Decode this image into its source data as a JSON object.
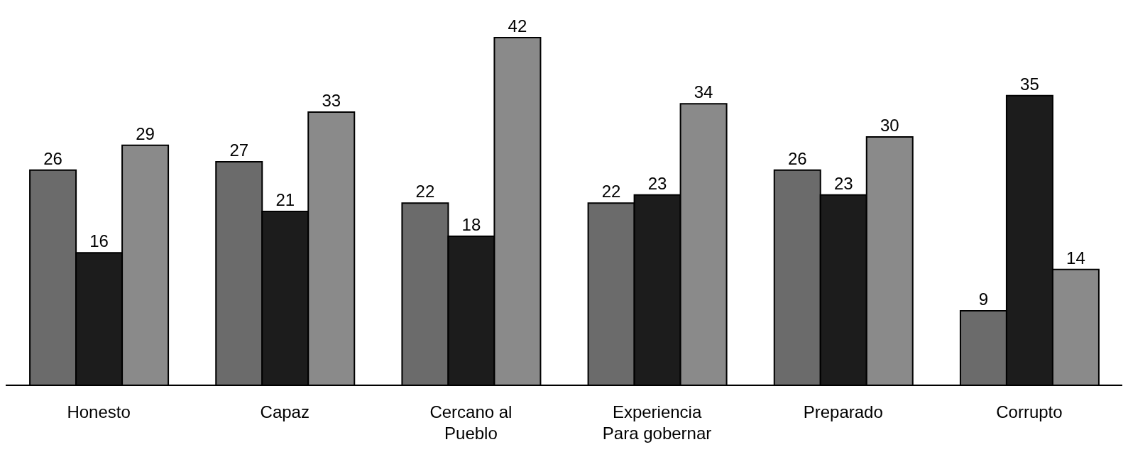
{
  "chart_data": {
    "type": "bar",
    "categories": [
      "Honesto",
      "Capaz",
      "Cercano al Pueblo",
      "Experiencia Para gobernar",
      "Preparado",
      "Corrupto"
    ],
    "series": [
      {
        "color": "#6b6b6b",
        "values": [
          26,
          27,
          22,
          22,
          26,
          9
        ]
      },
      {
        "color": "#1c1c1c",
        "values": [
          16,
          21,
          18,
          23,
          23,
          35
        ]
      },
      {
        "color": "#8a8a8a",
        "values": [
          29,
          33,
          42,
          34,
          30,
          14
        ]
      }
    ],
    "data_labels": true,
    "grid": false,
    "legend": false
  }
}
